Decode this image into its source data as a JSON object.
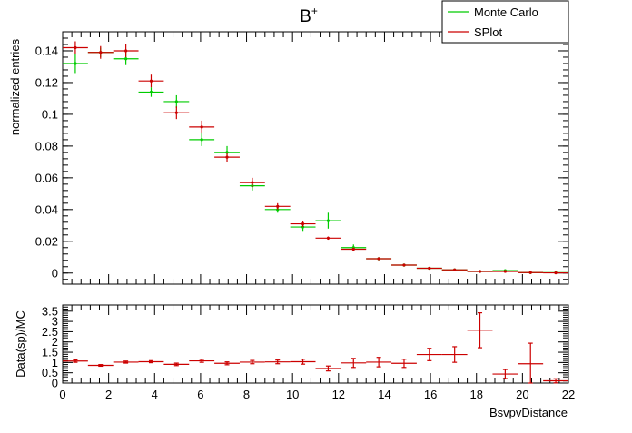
{
  "chart_data": [
    {
      "type": "scatter",
      "title_main": "B",
      "title_sup": "+",
      "xlabel": "",
      "ylabel": "normalized entries",
      "xlim": [
        0,
        22
      ],
      "ylim": [
        -0.007,
        0.152
      ],
      "ytick_values": [
        0,
        0.02,
        0.04,
        0.06,
        0.08,
        0.1,
        0.12,
        0.14
      ],
      "ytick_labels": [
        "0",
        "0.02",
        "0.04",
        "0.06",
        "0.08",
        "0.1",
        "0.12",
        "0.14"
      ],
      "grid": false,
      "legend_position": "top-right",
      "series": [
        {
          "name": "Monte Carlo",
          "color": "#00cc00",
          "x": [
            0.55,
            1.65,
            2.75,
            3.85,
            4.95,
            6.05,
            7.15,
            8.25,
            9.35,
            10.45,
            11.55,
            12.65,
            13.75,
            14.85,
            15.95,
            17.05,
            18.15,
            19.25,
            20.35,
            21.45
          ],
          "xerr": 0.55,
          "y": [
            0.132,
            0.139,
            0.135,
            0.114,
            0.108,
            0.084,
            0.076,
            0.055,
            0.04,
            0.029,
            0.033,
            0.016,
            0.009,
            0.005,
            0.003,
            0.002,
            0.001,
            0.0015,
            0.0003,
            0.0002
          ],
          "yerr": [
            0.006,
            0.003,
            0.004,
            0.003,
            0.004,
            0.004,
            0.004,
            0.003,
            0.002,
            0.003,
            0.005,
            0.002,
            0.001,
            0.001,
            0.0007,
            0.0005,
            0.0005,
            0.0008,
            0.0003,
            0.0002
          ]
        },
        {
          "name": "SPlot",
          "color": "#cc0000",
          "x": [
            0.55,
            1.65,
            2.75,
            3.85,
            4.95,
            6.05,
            7.15,
            8.25,
            9.35,
            10.45,
            11.55,
            12.65,
            13.75,
            14.85,
            15.95,
            17.05,
            18.15,
            19.25,
            20.35,
            21.45
          ],
          "xerr": 0.55,
          "y": [
            0.142,
            0.139,
            0.14,
            0.121,
            0.101,
            0.092,
            0.073,
            0.057,
            0.042,
            0.031,
            0.022,
            0.015,
            0.009,
            0.005,
            0.003,
            0.002,
            0.001,
            0.001,
            0.0003,
            0.0001
          ],
          "yerr": [
            0.004,
            0.004,
            0.004,
            0.004,
            0.004,
            0.004,
            0.003,
            0.003,
            0.002,
            0.002,
            0.001,
            0.001,
            0.0007,
            0.0005,
            0.0004,
            0.0003,
            0.0003,
            0.0003,
            0.0001,
            0.0001
          ]
        }
      ]
    },
    {
      "type": "scatter",
      "xlabel": "BsvpvDistance",
      "ylabel": "Data(sp)/MC",
      "xlim": [
        0,
        22
      ],
      "ylim": [
        0,
        3.8
      ],
      "xtick_values": [
        0,
        2,
        4,
        6,
        8,
        10,
        12,
        14,
        16,
        18,
        20,
        22
      ],
      "xtick_labels": [
        "0",
        "2",
        "4",
        "6",
        "8",
        "10",
        "12",
        "14",
        "16",
        "18",
        "20",
        "22"
      ],
      "ytick_values": [
        0,
        0.5,
        1,
        1.5,
        2,
        2.5,
        3,
        3.5
      ],
      "ytick_labels": [
        "0",
        "0.5",
        "1",
        "1.5",
        "2",
        "2.5",
        "3",
        "3.5"
      ],
      "grid": false,
      "series": [
        {
          "color": "#cc0000",
          "x": [
            0.55,
            1.65,
            2.75,
            3.85,
            4.95,
            6.05,
            7.15,
            8.25,
            9.35,
            10.45,
            11.55,
            12.65,
            13.75,
            14.85,
            15.95,
            17.05,
            18.15,
            19.25,
            20.35,
            21.45
          ],
          "xerr": 0.55,
          "y": [
            1.07,
            0.86,
            1.02,
            1.04,
            0.91,
            1.08,
            0.96,
            1.02,
            1.03,
            1.04,
            0.71,
            0.98,
            1.02,
            0.96,
            1.39,
            1.39,
            2.57,
            0.44,
            0.94,
            0.11
          ],
          "yerr": [
            0.06,
            0.04,
            0.05,
            0.05,
            0.06,
            0.07,
            0.07,
            0.08,
            0.09,
            0.12,
            0.12,
            0.22,
            0.23,
            0.2,
            0.3,
            0.38,
            0.85,
            0.22,
            1.0,
            0.1
          ]
        }
      ]
    }
  ]
}
